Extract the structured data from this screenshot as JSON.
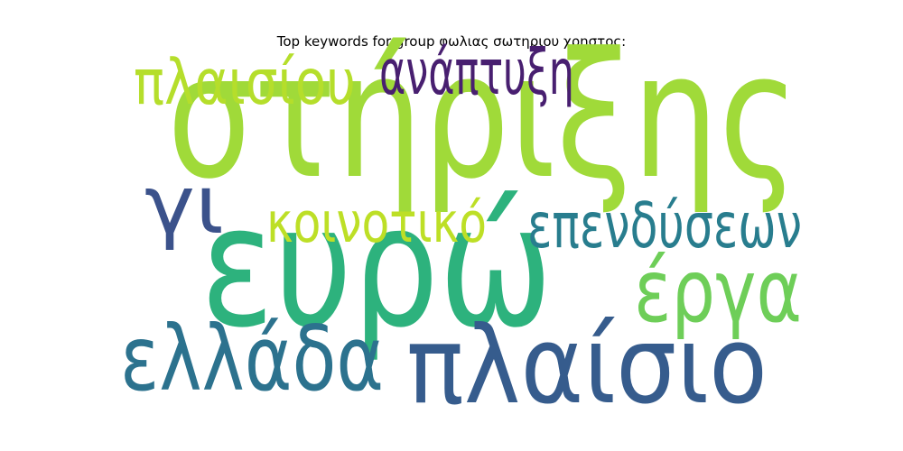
{
  "chart_data": {
    "type": "wordcloud",
    "title": "Top keywords for group φωλιας σωτηριου χρηστος:",
    "words": [
      {
        "text": "στήριξης",
        "weight": 1.0,
        "color": "#a0da39"
      },
      {
        "text": "ευρώ",
        "weight": 0.97,
        "color": "#2db27d"
      },
      {
        "text": "πλαίσιο",
        "weight": 0.62,
        "color": "#365c8d"
      },
      {
        "text": "ελλάδα",
        "weight": 0.52,
        "color": "#2c728e"
      },
      {
        "text": "έργα",
        "weight": 0.5,
        "color": "#6ece58"
      },
      {
        "text": "γι",
        "weight": 0.47,
        "color": "#3b528b"
      },
      {
        "text": "επενδύσεων",
        "weight": 0.36,
        "color": "#287d8e"
      },
      {
        "text": "πλαισίου",
        "weight": 0.36,
        "color": "#b5de2b"
      },
      {
        "text": "ανάπτυξη",
        "weight": 0.36,
        "color": "#481f70"
      },
      {
        "text": "κοινοτικό",
        "weight": 0.32,
        "color": "#bddf26"
      }
    ]
  }
}
